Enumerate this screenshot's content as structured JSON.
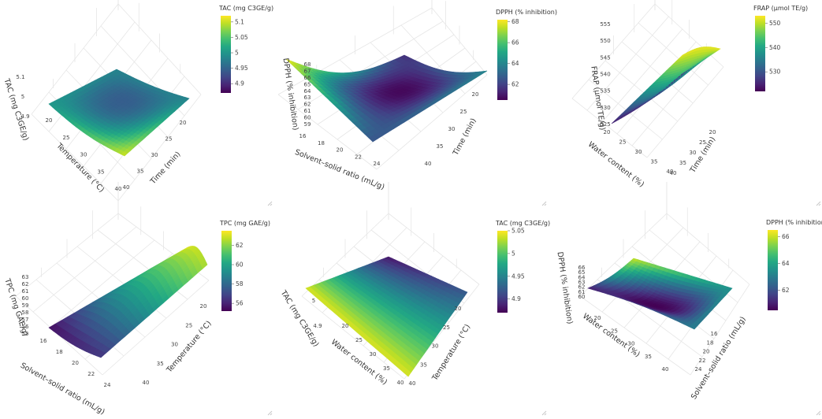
{
  "colors": {
    "viridis": [
      "#440154",
      "#482475",
      "#414487",
      "#355f8d",
      "#2a788e",
      "#21918c",
      "#22a884",
      "#44bf70",
      "#7ad151",
      "#bddf26",
      "#fde725"
    ]
  },
  "chart_data": [
    {
      "type": "surface3d",
      "colorbar": {
        "title": "TAC (mg C3GE/g)",
        "ticks": [
          "5.1",
          "5.05",
          "5",
          "4.95",
          "4.9"
        ],
        "range": [
          4.87,
          5.12
        ]
      },
      "z_title": "TAC (mg C3GE/g)",
      "z_ticks": [
        "5.1",
        "5",
        "4.9"
      ],
      "x_title": "Temperature (°C)",
      "x_ticks": [
        "20",
        "25",
        "30",
        "35",
        "40"
      ],
      "y_title": "Time (min)",
      "y_ticks": [
        "20",
        "25",
        "30",
        "35",
        "40"
      ],
      "surface": {
        "back": 4.98,
        "right": 4.98,
        "front": 5.1,
        "left": 5.0,
        "center": 4.95
      }
    },
    {
      "type": "surface3d",
      "colorbar": {
        "title": "DPPH (% inhibition)",
        "ticks": [
          "68",
          "66",
          "64",
          "62"
        ],
        "range": [
          60.5,
          68.2
        ]
      },
      "z_title": "DPPH (% inhibition)",
      "z_ticks": [
        "68",
        "67",
        "66",
        "65",
        "64",
        "63",
        "62",
        "61",
        "60",
        "59"
      ],
      "x_title": "Solvent–solid ratio (mL/g)",
      "x_ticks": [
        "16",
        "18",
        "20",
        "22",
        "24"
      ],
      "y_title": "Time (min)",
      "y_ticks": [
        "20",
        "25",
        "30",
        "35",
        "40"
      ],
      "surface": {
        "back": 61.5,
        "right": 64.0,
        "front": 62.5,
        "left": 68.0,
        "center": 60.8
      }
    },
    {
      "type": "surface3d",
      "colorbar": {
        "title": "FRAP (μmol TE/g)",
        "ticks": [
          "550",
          "540",
          "530"
        ],
        "range": [
          522,
          553
        ]
      },
      "z_title": "FRAP (μmol TE/g)",
      "z_ticks": [
        "555",
        "550",
        "545",
        "540",
        "535",
        "530",
        "525"
      ],
      "x_title": "Water content (%)",
      "x_ticks": [
        "20",
        "25",
        "30",
        "35",
        "40"
      ],
      "y_title": "Time (min)",
      "y_ticks": [
        "20",
        "25",
        "30",
        "35",
        "40"
      ],
      "surface": {
        "back": 552,
        "right": 552,
        "front": 526,
        "left": 525,
        "center": 540
      }
    },
    {
      "type": "surface3d",
      "colorbar": {
        "title": "TPC (mg GAE/g)",
        "ticks": [
          "62",
          "60",
          "58",
          "56"
        ],
        "range": [
          55.2,
          63.5
        ]
      },
      "z_title": "TPC (mg GAE/g)",
      "z_ticks": [
        "63",
        "62",
        "61",
        "60",
        "59",
        "58",
        "57",
        "56",
        "55"
      ],
      "x_title": "Solvent–solid ratio (mL/g)",
      "x_ticks": [
        "16",
        "18",
        "20",
        "22",
        "24"
      ],
      "y_title": "Temperature (°C)",
      "y_ticks": [
        "20",
        "25",
        "30",
        "35",
        "40"
      ],
      "surface": {
        "back": 63.2,
        "right": 62.5,
        "front": 56.5,
        "left": 55.5,
        "center": 60
      }
    },
    {
      "type": "surface3d",
      "colorbar": {
        "title": "TAC (mg C3GE/g)",
        "ticks": [
          "5.05",
          "5",
          "4.95",
          "4.9"
        ],
        "range": [
          4.87,
          5.05
        ]
      },
      "z_title": "TAC (mg C3GE/g)",
      "z_ticks": [
        "5",
        "4.9"
      ],
      "x_title": "Water content (%)",
      "x_ticks": [
        "20",
        "25",
        "30",
        "35",
        "40"
      ],
      "y_title": "Temperature (°C)",
      "y_ticks": [
        "20",
        "25",
        "30",
        "35",
        "40"
      ],
      "surface": {
        "back": 4.88,
        "right": 4.92,
        "front": 5.04,
        "left": 5.04,
        "center": 4.97
      }
    },
    {
      "type": "surface3d",
      "colorbar": {
        "title": "DPPH (% inhibition)",
        "ticks": [
          "66",
          "64",
          "62"
        ],
        "range": [
          60.5,
          66.5
        ]
      },
      "z_title": "DPPH (% inhibition)",
      "z_ticks": [
        "66",
        "65",
        "64",
        "63",
        "62",
        "61",
        "60"
      ],
      "x_title": "Water content (%)",
      "x_ticks": [
        "20",
        "25",
        "30",
        "35",
        "40"
      ],
      "y_title": "Solvent–solid ratio (mL/g)",
      "y_ticks": [
        "16",
        "18",
        "20",
        "22",
        "24"
      ],
      "surface": {
        "back": 66,
        "right": 63.5,
        "front": 63,
        "left": 61,
        "center": 60.7
      }
    }
  ]
}
